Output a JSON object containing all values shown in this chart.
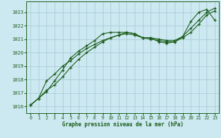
{
  "title": "Graphe pression niveau de la mer (hPa)",
  "background_color": "#cce8f0",
  "grid_color": "#aaccd8",
  "line_color": "#1a5c1a",
  "xlim": [
    -0.5,
    23.5
  ],
  "ylim": [
    1015.5,
    1023.8
  ],
  "yticks": [
    1016,
    1017,
    1018,
    1019,
    1020,
    1021,
    1022,
    1023
  ],
  "xticks": [
    0,
    1,
    2,
    3,
    4,
    5,
    6,
    7,
    8,
    9,
    10,
    11,
    12,
    13,
    14,
    15,
    16,
    17,
    18,
    19,
    20,
    21,
    22,
    23
  ],
  "series": [
    [
      1016.1,
      1016.6,
      1017.1,
      1017.9,
      1018.7,
      1019.6,
      1020.1,
      1020.5,
      1020.9,
      1021.4,
      1021.5,
      1021.5,
      1021.5,
      1021.4,
      1021.1,
      1021.1,
      1020.8,
      1020.7,
      1020.8,
      1021.2,
      1022.3,
      1023.0,
      1023.2,
      1022.4
    ],
    [
      1016.1,
      1016.6,
      1017.9,
      1018.4,
      1019.0,
      1019.4,
      1019.9,
      1020.3,
      1020.6,
      1020.9,
      1021.1,
      1021.3,
      1021.4,
      1021.3,
      1021.1,
      1021.0,
      1020.9,
      1020.8,
      1020.8,
      1021.1,
      1021.5,
      1022.1,
      1022.8,
      1023.1
    ],
    [
      1016.1,
      1016.6,
      1017.2,
      1017.6,
      1018.2,
      1018.9,
      1019.5,
      1020.0,
      1020.4,
      1020.8,
      1021.1,
      1021.3,
      1021.5,
      1021.4,
      1021.1,
      1021.1,
      1021.0,
      1020.9,
      1020.9,
      1021.2,
      1021.8,
      1022.4,
      1023.0,
      1023.3
    ]
  ]
}
